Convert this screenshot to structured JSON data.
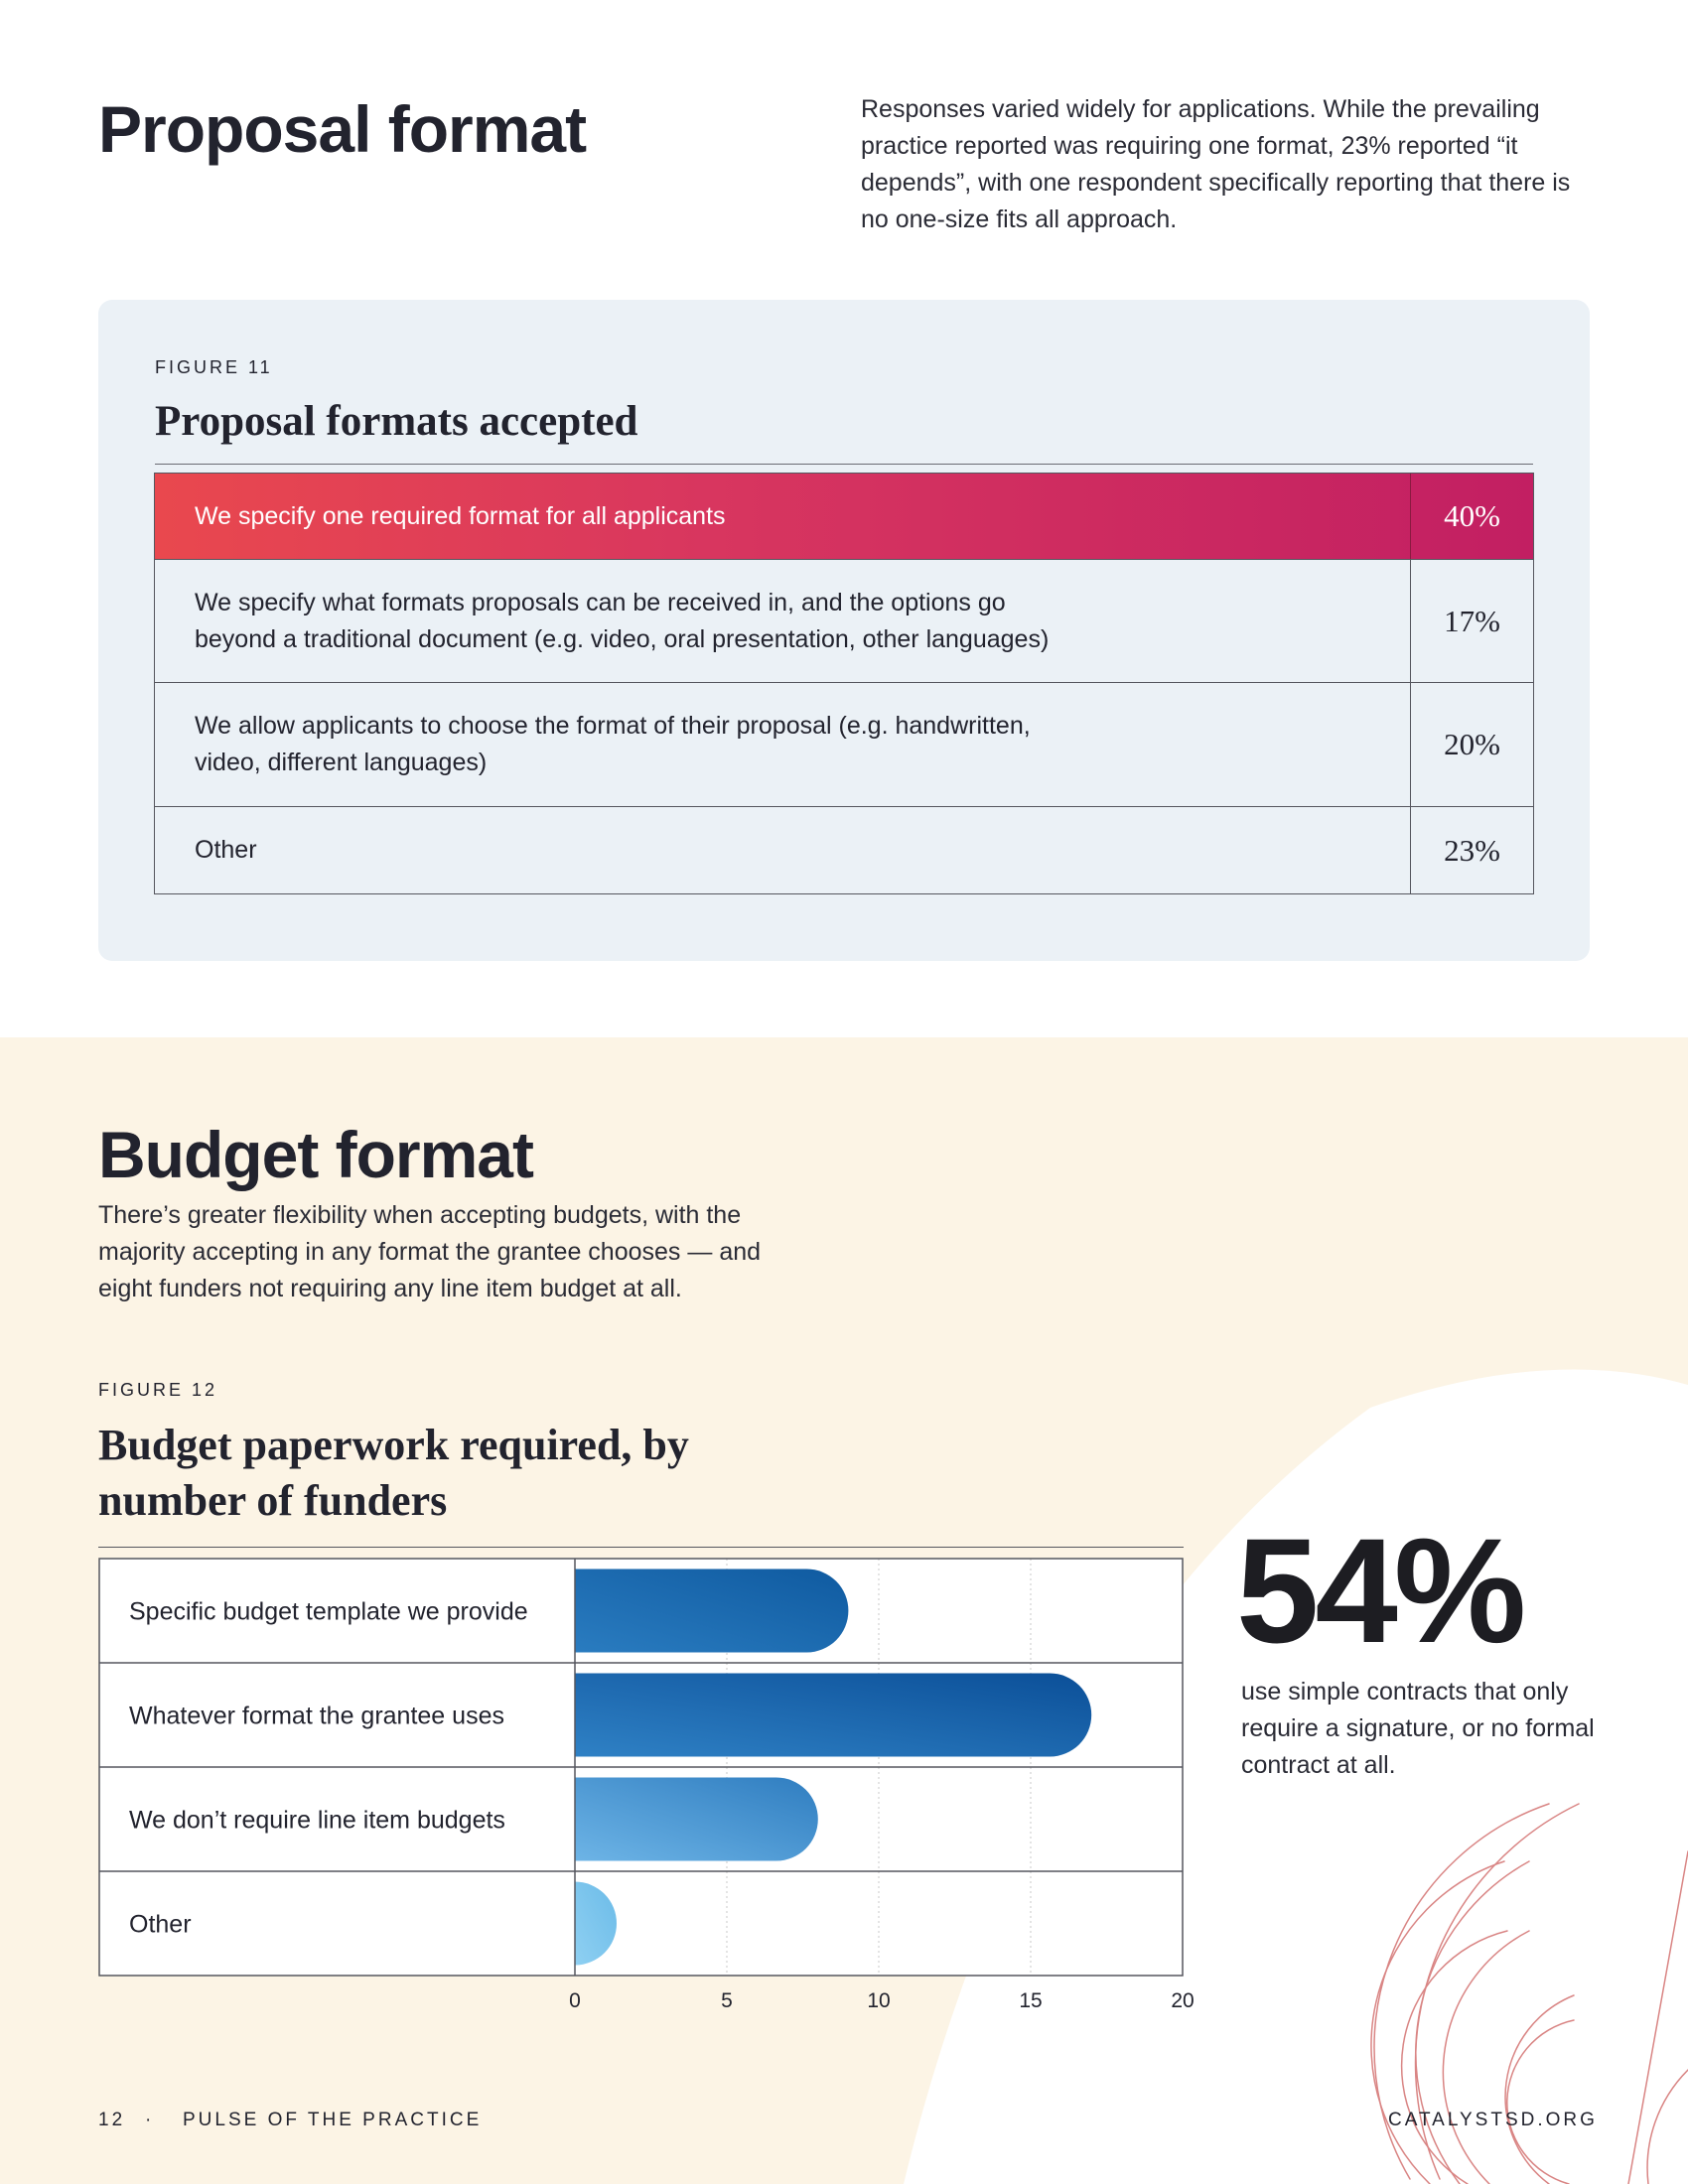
{
  "proposal": {
    "title": "Proposal format",
    "intro": "Responses varied widely for applications. While the prevailing practice reported was requiring one format, 23% reported “it depends”, with one respondent specifically reporting that there is no one-size fits all approach."
  },
  "figure11": {
    "label": "FIGURE 11",
    "title": "Proposal formats accepted",
    "rows": [
      {
        "label": "We specify one required format for all applicants",
        "value": "40%"
      },
      {
        "label": "We specify what formats proposals can be received in, and the options go beyond a traditional document (e.g. video, oral presentation, other languages)",
        "value": "17%"
      },
      {
        "label": "We allow applicants to choose the format of their proposal (e.g. handwritten, video, different languages)",
        "value": "20%"
      },
      {
        "label": "Other",
        "value": "23%"
      }
    ],
    "highlight_color": "#d8365f"
  },
  "budget": {
    "title": "Budget format",
    "intro": "There’s greater flexibility when accepting budgets, with the majority accepting in any format the grantee chooses — and eight funders not requiring any line item budget at all."
  },
  "figure12": {
    "label": "FIGURE 12",
    "title": "Budget paperwork required, by number of funders"
  },
  "chart_data": {
    "type": "bar",
    "orientation": "horizontal",
    "categories": [
      "Specific budget template we provide",
      "Whatever format the grantee uses",
      "We don’t require line item budgets",
      "Other"
    ],
    "values": [
      9,
      17,
      8,
      1
    ],
    "xlim": [
      0,
      20
    ],
    "xticks": [
      0,
      5,
      10,
      15,
      20
    ],
    "grid": true,
    "colors": [
      "#1a5fa6",
      "#135aa5",
      "#4d97d1",
      "#7cc2ea"
    ]
  },
  "stat": {
    "value": "54%",
    "text": "use simple contracts that only require a signature, or no formal contract at all."
  },
  "footer": {
    "page": "12",
    "separator": "·",
    "publication": "PULSE OF THE PRACTICE",
    "site": "CATALYSTSD.ORG"
  }
}
